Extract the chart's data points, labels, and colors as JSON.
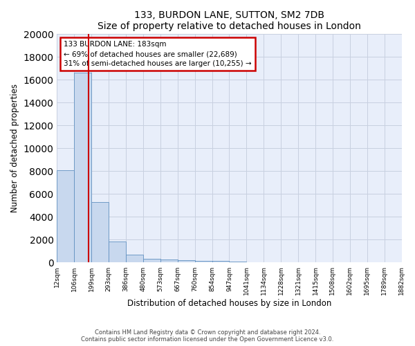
{
  "title": "133, BURDON LANE, SUTTON, SM2 7DB",
  "subtitle": "Size of property relative to detached houses in London",
  "xlabel": "Distribution of detached houses by size in London",
  "ylabel": "Number of detached properties",
  "footnote1": "Contains HM Land Registry data © Crown copyright and database right 2024.",
  "footnote2": "Contains public sector information licensed under the Open Government Licence v3.0.",
  "annotation_line1": "133 BURDON LANE: 183sqm",
  "annotation_line2": "← 69% of detached houses are smaller (22,689)",
  "annotation_line3": "31% of semi-detached houses are larger (10,255) →",
  "bar_color": "#c8d8ee",
  "bar_edge_color": "#6090c0",
  "red_line_color": "#cc0000",
  "annotation_box_color": "#cc0000",
  "grid_color": "#c8d0e0",
  "background_color": "#e8eefa",
  "bin_edges": [
    12,
    106,
    199,
    293,
    386,
    480,
    573,
    667,
    760,
    854,
    947,
    1041,
    1134,
    1228,
    1321,
    1415,
    1508,
    1602,
    1695,
    1789,
    1882
  ],
  "bin_labels": [
    "12sqm",
    "106sqm",
    "199sqm",
    "293sqm",
    "386sqm",
    "480sqm",
    "573sqm",
    "667sqm",
    "760sqm",
    "854sqm",
    "947sqm",
    "1041sqm",
    "1134sqm",
    "1228sqm",
    "1321sqm",
    "1415sqm",
    "1508sqm",
    "1602sqm",
    "1695sqm",
    "1789sqm",
    "1882sqm"
  ],
  "bar_heights": [
    8100,
    16600,
    5300,
    1850,
    700,
    350,
    280,
    200,
    170,
    130,
    60,
    30,
    15,
    10,
    8,
    5,
    4,
    3,
    2,
    1
  ],
  "property_size": 183,
  "ylim": [
    0,
    20000
  ],
  "yticks": [
    0,
    2000,
    4000,
    6000,
    8000,
    10000,
    12000,
    14000,
    16000,
    18000,
    20000
  ]
}
